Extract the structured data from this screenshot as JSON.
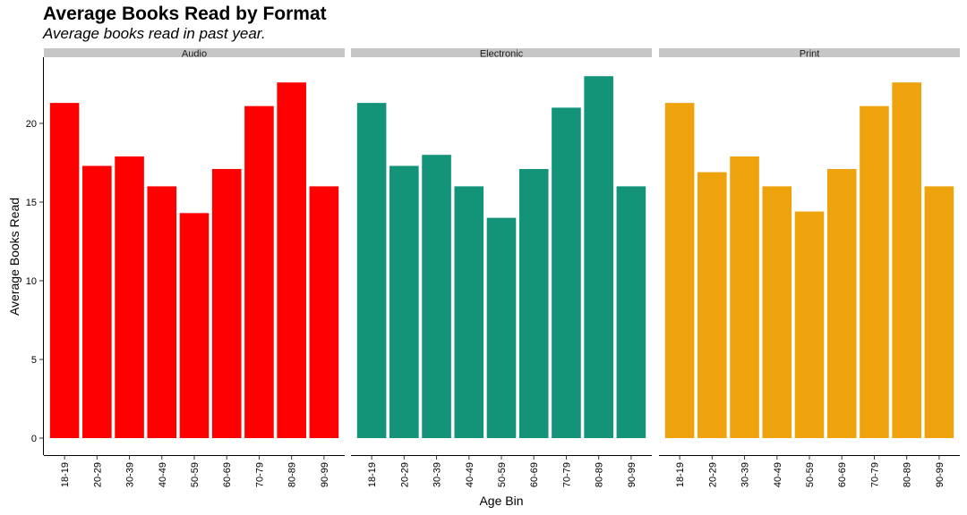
{
  "chart_data": {
    "type": "bar",
    "title": "Average Books Read by Format",
    "subtitle": "Average books read in past year.",
    "xlabel": "Age Bin",
    "ylabel": "Average Books Read",
    "ylim": [
      0,
      23.5
    ],
    "yticks": [
      0,
      5,
      10,
      15,
      20
    ],
    "categories": [
      "18-19",
      "20-29",
      "30-39",
      "40-49",
      "50-59",
      "60-69",
      "70-79",
      "80-89",
      "90-99"
    ],
    "grid": false,
    "legend": "none",
    "facets": [
      {
        "name": "Audio",
        "color": "#FF0000",
        "values": [
          21.3,
          17.3,
          17.9,
          16.0,
          14.3,
          17.1,
          21.1,
          22.6,
          16.0
        ]
      },
      {
        "name": "Electronic",
        "color": "#139479",
        "values": [
          21.3,
          17.3,
          18.0,
          16.0,
          14.0,
          17.1,
          21.0,
          23.0,
          16.0
        ]
      },
      {
        "name": "Print",
        "color": "#EEA20C",
        "values": [
          21.3,
          16.9,
          17.9,
          16.0,
          14.4,
          17.1,
          21.1,
          22.6,
          16.0
        ]
      }
    ]
  }
}
